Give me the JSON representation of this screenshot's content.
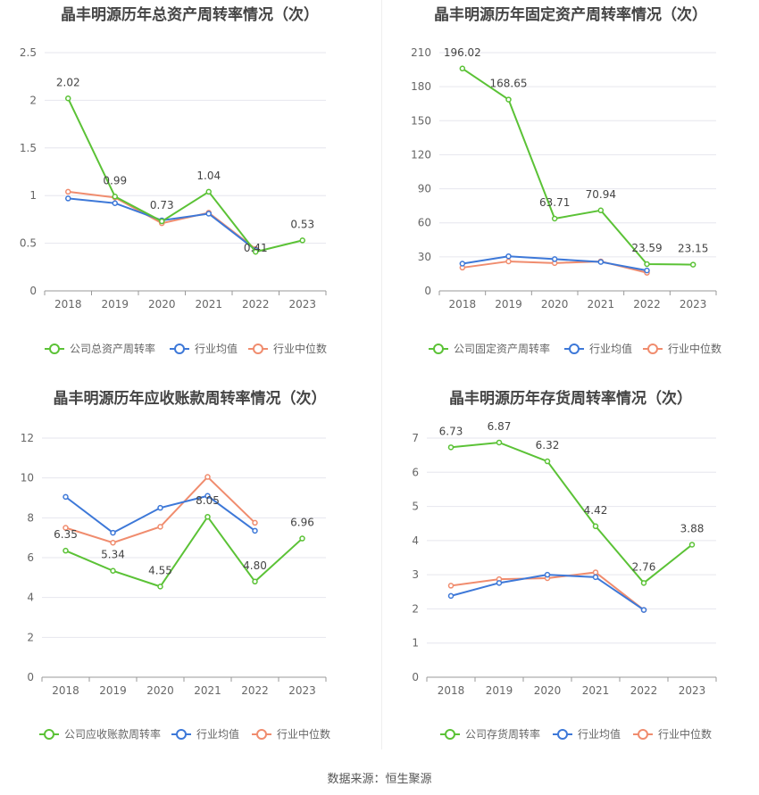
{
  "colors": {
    "company": "#5bc236",
    "avg": "#3d78d8",
    "median": "#f08c6e",
    "grid": "#e6e6ee",
    "axis": "#999999",
    "text": "#666666"
  },
  "source": "数据来源：恒生聚源",
  "chart_data": [
    {
      "type": "line",
      "title": "晶丰明源历年总资产周转率情况（次）",
      "categories": [
        "2018",
        "2019",
        "2020",
        "2021",
        "2022",
        "2023"
      ],
      "yticks": [
        "0",
        "0.5",
        "1",
        "1.5",
        "2",
        "2.5"
      ],
      "ylim": [
        0,
        2.5
      ],
      "series": [
        {
          "name": "公司总资产周转率",
          "values": [
            2.02,
            0.99,
            0.73,
            1.04,
            0.41,
            0.53
          ],
          "labels": [
            "2.02",
            "0.99",
            "0.73",
            "1.04",
            "0.41",
            "0.53"
          ]
        },
        {
          "name": "行业均值",
          "values": [
            0.97,
            0.92,
            0.74,
            0.81,
            0.43,
            null
          ]
        },
        {
          "name": "行业中位数",
          "values": [
            1.04,
            0.98,
            0.71,
            0.82,
            0.44,
            null
          ]
        }
      ],
      "legend": "bottom"
    },
    {
      "type": "line",
      "title": "晶丰明源历年固定资产周转率情况（次）",
      "categories": [
        "2018",
        "2019",
        "2020",
        "2021",
        "2022",
        "2023"
      ],
      "yticks": [
        "0",
        "30",
        "60",
        "90",
        "120",
        "150",
        "180",
        "210"
      ],
      "ylim": [
        0,
        210
      ],
      "series": [
        {
          "name": "公司固定资产周转率",
          "values": [
            196.02,
            168.65,
            63.71,
            70.94,
            23.59,
            23.15
          ],
          "labels": [
            "196.02",
            "168.65",
            "63.71",
            "70.94",
            "23.59",
            "23.15"
          ]
        },
        {
          "name": "行业均值",
          "values": [
            24,
            30.5,
            28,
            25.5,
            18,
            null
          ]
        },
        {
          "name": "行业中位数",
          "values": [
            20.5,
            26,
            24.5,
            26,
            16,
            null
          ]
        }
      ],
      "legend": "bottom"
    },
    {
      "type": "line",
      "title": "晶丰明源历年应收账款周转率情况（次）",
      "categories": [
        "2018",
        "2019",
        "2020",
        "2021",
        "2022",
        "2023"
      ],
      "yticks": [
        "0",
        "2",
        "4",
        "6",
        "8",
        "10",
        "12"
      ],
      "ylim": [
        0,
        12
      ],
      "series": [
        {
          "name": "公司应收账款周转率",
          "values": [
            6.35,
            5.34,
            4.55,
            8.05,
            4.8,
            6.96
          ],
          "labels": [
            "6.35",
            "5.34",
            "4.55",
            "8.05",
            "4.80",
            "6.96"
          ]
        },
        {
          "name": "行业均值",
          "values": [
            9.05,
            7.25,
            8.5,
            9.1,
            7.35,
            null
          ]
        },
        {
          "name": "行业中位数",
          "values": [
            7.5,
            6.75,
            7.55,
            10.05,
            7.75,
            null
          ]
        }
      ],
      "legend": "bottom"
    },
    {
      "type": "line",
      "title": "晶丰明源历年存货周转率情况（次）",
      "categories": [
        "2018",
        "2019",
        "2020",
        "2021",
        "2022",
        "2023"
      ],
      "yticks": [
        "0",
        "1",
        "2",
        "3",
        "4",
        "5",
        "6",
        "7"
      ],
      "ylim": [
        0,
        7
      ],
      "series": [
        {
          "name": "公司存货周转率",
          "values": [
            6.73,
            6.87,
            6.32,
            4.42,
            2.76,
            3.88
          ],
          "labels": [
            "6.73",
            "6.87",
            "6.32",
            "4.42",
            "2.76",
            "3.88"
          ]
        },
        {
          "name": "行业均值",
          "values": [
            2.38,
            2.76,
            3.0,
            2.93,
            1.97,
            null
          ]
        },
        {
          "name": "行业中位数",
          "values": [
            2.68,
            2.87,
            2.9,
            3.07,
            1.97,
            null
          ]
        }
      ],
      "legend": "bottom"
    }
  ]
}
